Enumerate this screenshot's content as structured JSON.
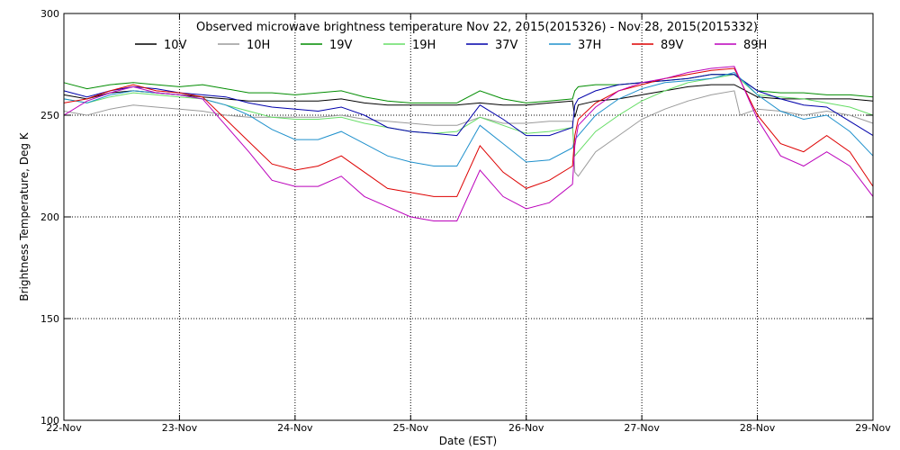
{
  "chart_data": {
    "type": "line",
    "title": "Observed microwave brightness temperature Nov 22, 2015(2015326) - Nov 28, 2015(2015332)",
    "xlabel": "Date (EST)",
    "ylabel": "Brightness Temperature, Deg K",
    "xlim": [
      0,
      7
    ],
    "ylim": [
      100,
      300
    ],
    "x_tick_values": [
      0,
      1,
      2,
      3,
      4,
      5,
      6,
      7
    ],
    "x_tick_labels": [
      "22-Nov",
      "23-Nov",
      "24-Nov",
      "25-Nov",
      "26-Nov",
      "27-Nov",
      "28-Nov",
      "29-Nov"
    ],
    "y_ticks": [
      100,
      150,
      200,
      250,
      300
    ],
    "grid": "dotted",
    "legend_placement": "top",
    "series": [
      {
        "name": "10V",
        "color": "#000000",
        "x": [
          0,
          0.2,
          0.4,
          0.6,
          0.8,
          1.0,
          1.2,
          1.4,
          1.6,
          1.8,
          2.0,
          2.2,
          2.4,
          2.6,
          2.8,
          3.0,
          3.2,
          3.4,
          3.6,
          3.8,
          4.0,
          4.2,
          4.4,
          4.42,
          4.45,
          4.6,
          4.8,
          5.0,
          5.2,
          5.4,
          5.6,
          5.8,
          6.0,
          6.2,
          6.4,
          6.6,
          6.8,
          7.0
        ],
        "y": [
          260,
          258,
          261,
          262,
          261,
          260,
          259,
          258,
          257,
          257,
          257,
          257,
          258,
          256,
          255,
          255,
          255,
          255,
          256,
          255,
          255,
          256,
          257,
          249,
          255,
          257,
          258,
          260,
          262,
          264,
          265,
          265,
          259,
          258,
          258,
          258,
          258,
          257
        ]
      },
      {
        "name": "10H",
        "color": "#9a9a9a",
        "x": [
          0,
          0.2,
          0.4,
          0.6,
          0.8,
          1.0,
          1.2,
          1.4,
          1.6,
          1.8,
          2.0,
          2.2,
          2.4,
          2.6,
          2.8,
          3.0,
          3.2,
          3.4,
          3.6,
          3.8,
          4.0,
          4.2,
          4.4,
          4.42,
          4.45,
          4.6,
          4.8,
          5.0,
          5.2,
          5.4,
          5.6,
          5.8,
          5.85,
          6.0,
          6.2,
          6.4,
          6.6,
          6.8,
          7.0
        ],
        "y": [
          252,
          250,
          253,
          255,
          254,
          253,
          252,
          250,
          249,
          249,
          249,
          249,
          250,
          248,
          247,
          246,
          245,
          245,
          249,
          246,
          246,
          247,
          247,
          222,
          220,
          232,
          240,
          248,
          253,
          257,
          260,
          262,
          250,
          253,
          252,
          250,
          252,
          250,
          246
        ]
      },
      {
        "name": "19V",
        "color": "#008c00",
        "x": [
          0,
          0.2,
          0.4,
          0.6,
          0.8,
          1.0,
          1.2,
          1.4,
          1.6,
          1.8,
          2.0,
          2.2,
          2.4,
          2.6,
          2.8,
          3.0,
          3.2,
          3.4,
          3.6,
          3.8,
          4.0,
          4.2,
          4.4,
          4.42,
          4.45,
          4.6,
          4.8,
          5.0,
          5.2,
          5.4,
          5.6,
          5.8,
          6.0,
          6.2,
          6.4,
          6.6,
          6.8,
          7.0
        ],
        "y": [
          266,
          263,
          265,
          266,
          265,
          264,
          265,
          263,
          261,
          261,
          260,
          261,
          262,
          259,
          257,
          256,
          256,
          256,
          262,
          258,
          256,
          257,
          258,
          262,
          264,
          265,
          265,
          266,
          267,
          268,
          270,
          270,
          262,
          261,
          261,
          260,
          260,
          259
        ]
      },
      {
        "name": "19H",
        "color": "#66dd66",
        "x": [
          0,
          0.2,
          0.4,
          0.6,
          0.8,
          1.0,
          1.2,
          1.4,
          1.6,
          1.8,
          2.0,
          2.2,
          2.4,
          2.6,
          2.8,
          3.0,
          3.2,
          3.4,
          3.6,
          3.8,
          4.0,
          4.2,
          4.4,
          4.42,
          4.45,
          4.6,
          4.8,
          5.0,
          5.2,
          5.4,
          5.6,
          5.8,
          6.0,
          6.2,
          6.4,
          6.6,
          6.8,
          7.0
        ],
        "y": [
          258,
          256,
          259,
          261,
          260,
          259,
          258,
          255,
          252,
          249,
          248,
          248,
          249,
          246,
          244,
          242,
          241,
          242,
          249,
          245,
          241,
          242,
          244,
          230,
          232,
          242,
          250,
          257,
          262,
          266,
          268,
          270,
          260,
          259,
          258,
          256,
          254,
          250
        ]
      },
      {
        "name": "37V",
        "color": "#0000aa",
        "x": [
          0,
          0.2,
          0.4,
          0.6,
          0.8,
          1.0,
          1.2,
          1.4,
          1.6,
          1.8,
          2.0,
          2.2,
          2.4,
          2.6,
          2.8,
          3.0,
          3.2,
          3.4,
          3.6,
          3.8,
          4.0,
          4.2,
          4.4,
          4.42,
          4.45,
          4.6,
          4.8,
          5.0,
          5.2,
          5.4,
          5.6,
          5.8,
          6.0,
          6.2,
          6.4,
          6.6,
          6.8,
          7.0
        ],
        "y": [
          262,
          259,
          262,
          264,
          263,
          261,
          260,
          259,
          256,
          254,
          253,
          252,
          254,
          250,
          244,
          242,
          241,
          240,
          255,
          248,
          240,
          240,
          244,
          255,
          258,
          262,
          265,
          266,
          267,
          268,
          270,
          270,
          262,
          258,
          255,
          254,
          247,
          240
        ]
      },
      {
        "name": "37H",
        "color": "#1e90cc",
        "x": [
          0,
          0.2,
          0.4,
          0.6,
          0.8,
          1.0,
          1.2,
          1.4,
          1.6,
          1.8,
          2.0,
          2.2,
          2.4,
          2.6,
          2.8,
          3.0,
          3.2,
          3.4,
          3.6,
          3.8,
          4.0,
          4.2,
          4.4,
          4.42,
          4.45,
          4.6,
          4.8,
          5.0,
          5.2,
          5.4,
          5.6,
          5.8,
          6.0,
          6.2,
          6.4,
          6.6,
          6.8,
          7.0
        ],
        "y": [
          258,
          256,
          260,
          262,
          261,
          260,
          258,
          255,
          250,
          243,
          238,
          238,
          242,
          236,
          230,
          227,
          225,
          225,
          245,
          236,
          227,
          228,
          234,
          238,
          240,
          250,
          258,
          263,
          266,
          267,
          268,
          271,
          260,
          252,
          248,
          250,
          242,
          230
        ]
      },
      {
        "name": "89V",
        "color": "#dd0000",
        "x": [
          0,
          0.2,
          0.4,
          0.6,
          0.8,
          1.0,
          1.2,
          1.4,
          1.6,
          1.8,
          2.0,
          2.2,
          2.4,
          2.6,
          2.8,
          3.0,
          3.2,
          3.4,
          3.6,
          3.8,
          4.0,
          4.2,
          4.4,
          4.42,
          4.45,
          4.6,
          4.8,
          5.0,
          5.2,
          5.4,
          5.6,
          5.8,
          6.0,
          6.2,
          6.4,
          6.6,
          6.8,
          7.0
        ],
        "y": [
          256,
          258,
          262,
          265,
          262,
          261,
          259,
          248,
          237,
          226,
          223,
          225,
          230,
          222,
          214,
          212,
          210,
          210,
          235,
          222,
          214,
          218,
          225,
          240,
          248,
          256,
          262,
          265,
          268,
          270,
          272,
          273,
          250,
          236,
          232,
          240,
          232,
          215
        ]
      },
      {
        "name": "89H",
        "color": "#bb00bb",
        "x": [
          0,
          0.2,
          0.4,
          0.6,
          0.8,
          1.0,
          1.2,
          1.4,
          1.6,
          1.8,
          2.0,
          2.2,
          2.4,
          2.6,
          2.8,
          3.0,
          3.2,
          3.4,
          3.6,
          3.8,
          4.0,
          4.2,
          4.4,
          4.42,
          4.45,
          4.6,
          4.8,
          5.0,
          5.2,
          5.4,
          5.6,
          5.8,
          6.0,
          6.2,
          6.4,
          6.6,
          6.8,
          7.0
        ],
        "y": [
          250,
          257,
          261,
          264,
          261,
          260,
          258,
          245,
          232,
          218,
          215,
          215,
          220,
          210,
          205,
          200,
          198,
          198,
          223,
          210,
          204,
          207,
          216,
          235,
          245,
          254,
          262,
          266,
          268,
          271,
          273,
          274,
          248,
          230,
          225,
          232,
          225,
          210
        ]
      }
    ]
  }
}
